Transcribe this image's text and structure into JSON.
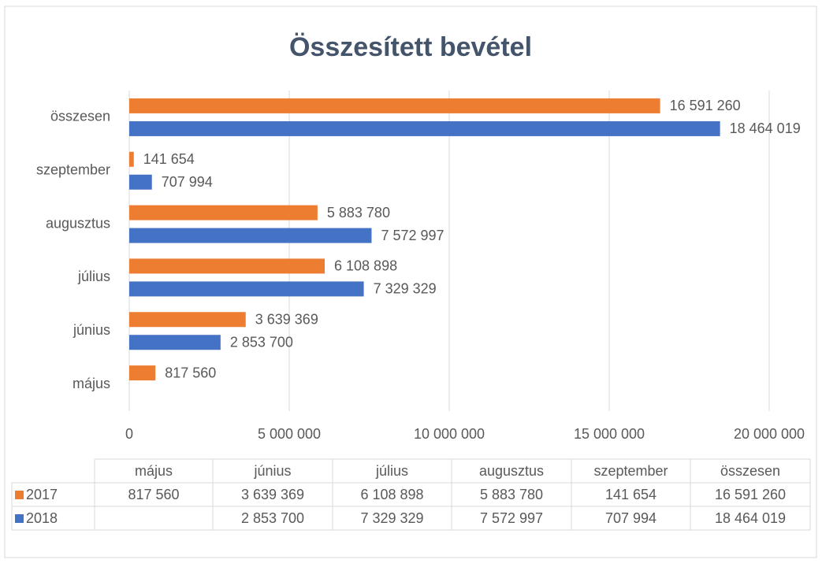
{
  "chart_data": {
    "type": "bar",
    "orientation": "horizontal",
    "title": "Összesített bevétel",
    "categories": [
      "május",
      "június",
      "július",
      "augusztus",
      "szeptember",
      "összesen"
    ],
    "series": [
      {
        "name": "2017",
        "color": "#ed7d31",
        "values": [
          817560,
          3639369,
          6108898,
          5883780,
          141654,
          16591260
        ],
        "value_labels": [
          "817 560",
          "3 639 369",
          "6 108 898",
          "5 883 780",
          "141 654",
          "16 591 260"
        ]
      },
      {
        "name": "2018",
        "color": "#4472c4",
        "values": [
          null,
          2853700,
          7329329,
          7572997,
          707994,
          18464019
        ],
        "value_labels": [
          null,
          "2 853 700",
          "7 329 329",
          "7 572 997",
          "707 994",
          "18 464 019"
        ]
      }
    ],
    "xlim": [
      0,
      20000000
    ],
    "xticks": [
      0,
      {
        "value": 5000000,
        "label": "5 000 000"
      },
      {
        "value": 10000000,
        "label": "10 000 000"
      },
      {
        "value": 15000000,
        "label": "15 000 000"
      },
      {
        "value": 20000000,
        "label": "20 000 000"
      }
    ],
    "grid": true,
    "data_table": true
  }
}
